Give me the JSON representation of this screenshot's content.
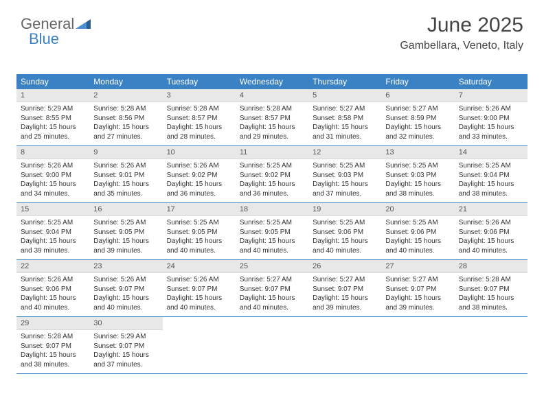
{
  "logo": {
    "text1": "General",
    "text2": "Blue",
    "accent": "#3b82c4"
  },
  "header": {
    "title": "June 2025",
    "location": "Gambellara, Veneto, Italy"
  },
  "colors": {
    "header_bg": "#3b82c4",
    "header_text": "#ffffff",
    "daynum_bg": "#e8e8e8",
    "border": "#3b82c4",
    "text": "#333333"
  },
  "layout": {
    "columns": 7,
    "cell_fontsize": 10,
    "header_fontsize": 12
  },
  "day_labels": [
    "Sunday",
    "Monday",
    "Tuesday",
    "Wednesday",
    "Thursday",
    "Friday",
    "Saturday"
  ],
  "days": [
    {
      "n": 1,
      "sunrise": "5:29 AM",
      "sunset": "8:55 PM",
      "dl": "15 hours and 25 minutes."
    },
    {
      "n": 2,
      "sunrise": "5:28 AM",
      "sunset": "8:56 PM",
      "dl": "15 hours and 27 minutes."
    },
    {
      "n": 3,
      "sunrise": "5:28 AM",
      "sunset": "8:57 PM",
      "dl": "15 hours and 28 minutes."
    },
    {
      "n": 4,
      "sunrise": "5:28 AM",
      "sunset": "8:57 PM",
      "dl": "15 hours and 29 minutes."
    },
    {
      "n": 5,
      "sunrise": "5:27 AM",
      "sunset": "8:58 PM",
      "dl": "15 hours and 31 minutes."
    },
    {
      "n": 6,
      "sunrise": "5:27 AM",
      "sunset": "8:59 PM",
      "dl": "15 hours and 32 minutes."
    },
    {
      "n": 7,
      "sunrise": "5:26 AM",
      "sunset": "9:00 PM",
      "dl": "15 hours and 33 minutes."
    },
    {
      "n": 8,
      "sunrise": "5:26 AM",
      "sunset": "9:00 PM",
      "dl": "15 hours and 34 minutes."
    },
    {
      "n": 9,
      "sunrise": "5:26 AM",
      "sunset": "9:01 PM",
      "dl": "15 hours and 35 minutes."
    },
    {
      "n": 10,
      "sunrise": "5:26 AM",
      "sunset": "9:02 PM",
      "dl": "15 hours and 36 minutes."
    },
    {
      "n": 11,
      "sunrise": "5:25 AM",
      "sunset": "9:02 PM",
      "dl": "15 hours and 36 minutes."
    },
    {
      "n": 12,
      "sunrise": "5:25 AM",
      "sunset": "9:03 PM",
      "dl": "15 hours and 37 minutes."
    },
    {
      "n": 13,
      "sunrise": "5:25 AM",
      "sunset": "9:03 PM",
      "dl": "15 hours and 38 minutes."
    },
    {
      "n": 14,
      "sunrise": "5:25 AM",
      "sunset": "9:04 PM",
      "dl": "15 hours and 38 minutes."
    },
    {
      "n": 15,
      "sunrise": "5:25 AM",
      "sunset": "9:04 PM",
      "dl": "15 hours and 39 minutes."
    },
    {
      "n": 16,
      "sunrise": "5:25 AM",
      "sunset": "9:05 PM",
      "dl": "15 hours and 39 minutes."
    },
    {
      "n": 17,
      "sunrise": "5:25 AM",
      "sunset": "9:05 PM",
      "dl": "15 hours and 40 minutes."
    },
    {
      "n": 18,
      "sunrise": "5:25 AM",
      "sunset": "9:05 PM",
      "dl": "15 hours and 40 minutes."
    },
    {
      "n": 19,
      "sunrise": "5:25 AM",
      "sunset": "9:06 PM",
      "dl": "15 hours and 40 minutes."
    },
    {
      "n": 20,
      "sunrise": "5:25 AM",
      "sunset": "9:06 PM",
      "dl": "15 hours and 40 minutes."
    },
    {
      "n": 21,
      "sunrise": "5:26 AM",
      "sunset": "9:06 PM",
      "dl": "15 hours and 40 minutes."
    },
    {
      "n": 22,
      "sunrise": "5:26 AM",
      "sunset": "9:06 PM",
      "dl": "15 hours and 40 minutes."
    },
    {
      "n": 23,
      "sunrise": "5:26 AM",
      "sunset": "9:07 PM",
      "dl": "15 hours and 40 minutes."
    },
    {
      "n": 24,
      "sunrise": "5:26 AM",
      "sunset": "9:07 PM",
      "dl": "15 hours and 40 minutes."
    },
    {
      "n": 25,
      "sunrise": "5:27 AM",
      "sunset": "9:07 PM",
      "dl": "15 hours and 40 minutes."
    },
    {
      "n": 26,
      "sunrise": "5:27 AM",
      "sunset": "9:07 PM",
      "dl": "15 hours and 39 minutes."
    },
    {
      "n": 27,
      "sunrise": "5:27 AM",
      "sunset": "9:07 PM",
      "dl": "15 hours and 39 minutes."
    },
    {
      "n": 28,
      "sunrise": "5:28 AM",
      "sunset": "9:07 PM",
      "dl": "15 hours and 38 minutes."
    },
    {
      "n": 29,
      "sunrise": "5:28 AM",
      "sunset": "9:07 PM",
      "dl": "15 hours and 38 minutes."
    },
    {
      "n": 30,
      "sunrise": "5:29 AM",
      "sunset": "9:07 PM",
      "dl": "15 hours and 37 minutes."
    }
  ],
  "labels": {
    "sunrise": "Sunrise:",
    "sunset": "Sunset:",
    "daylight": "Daylight:"
  }
}
